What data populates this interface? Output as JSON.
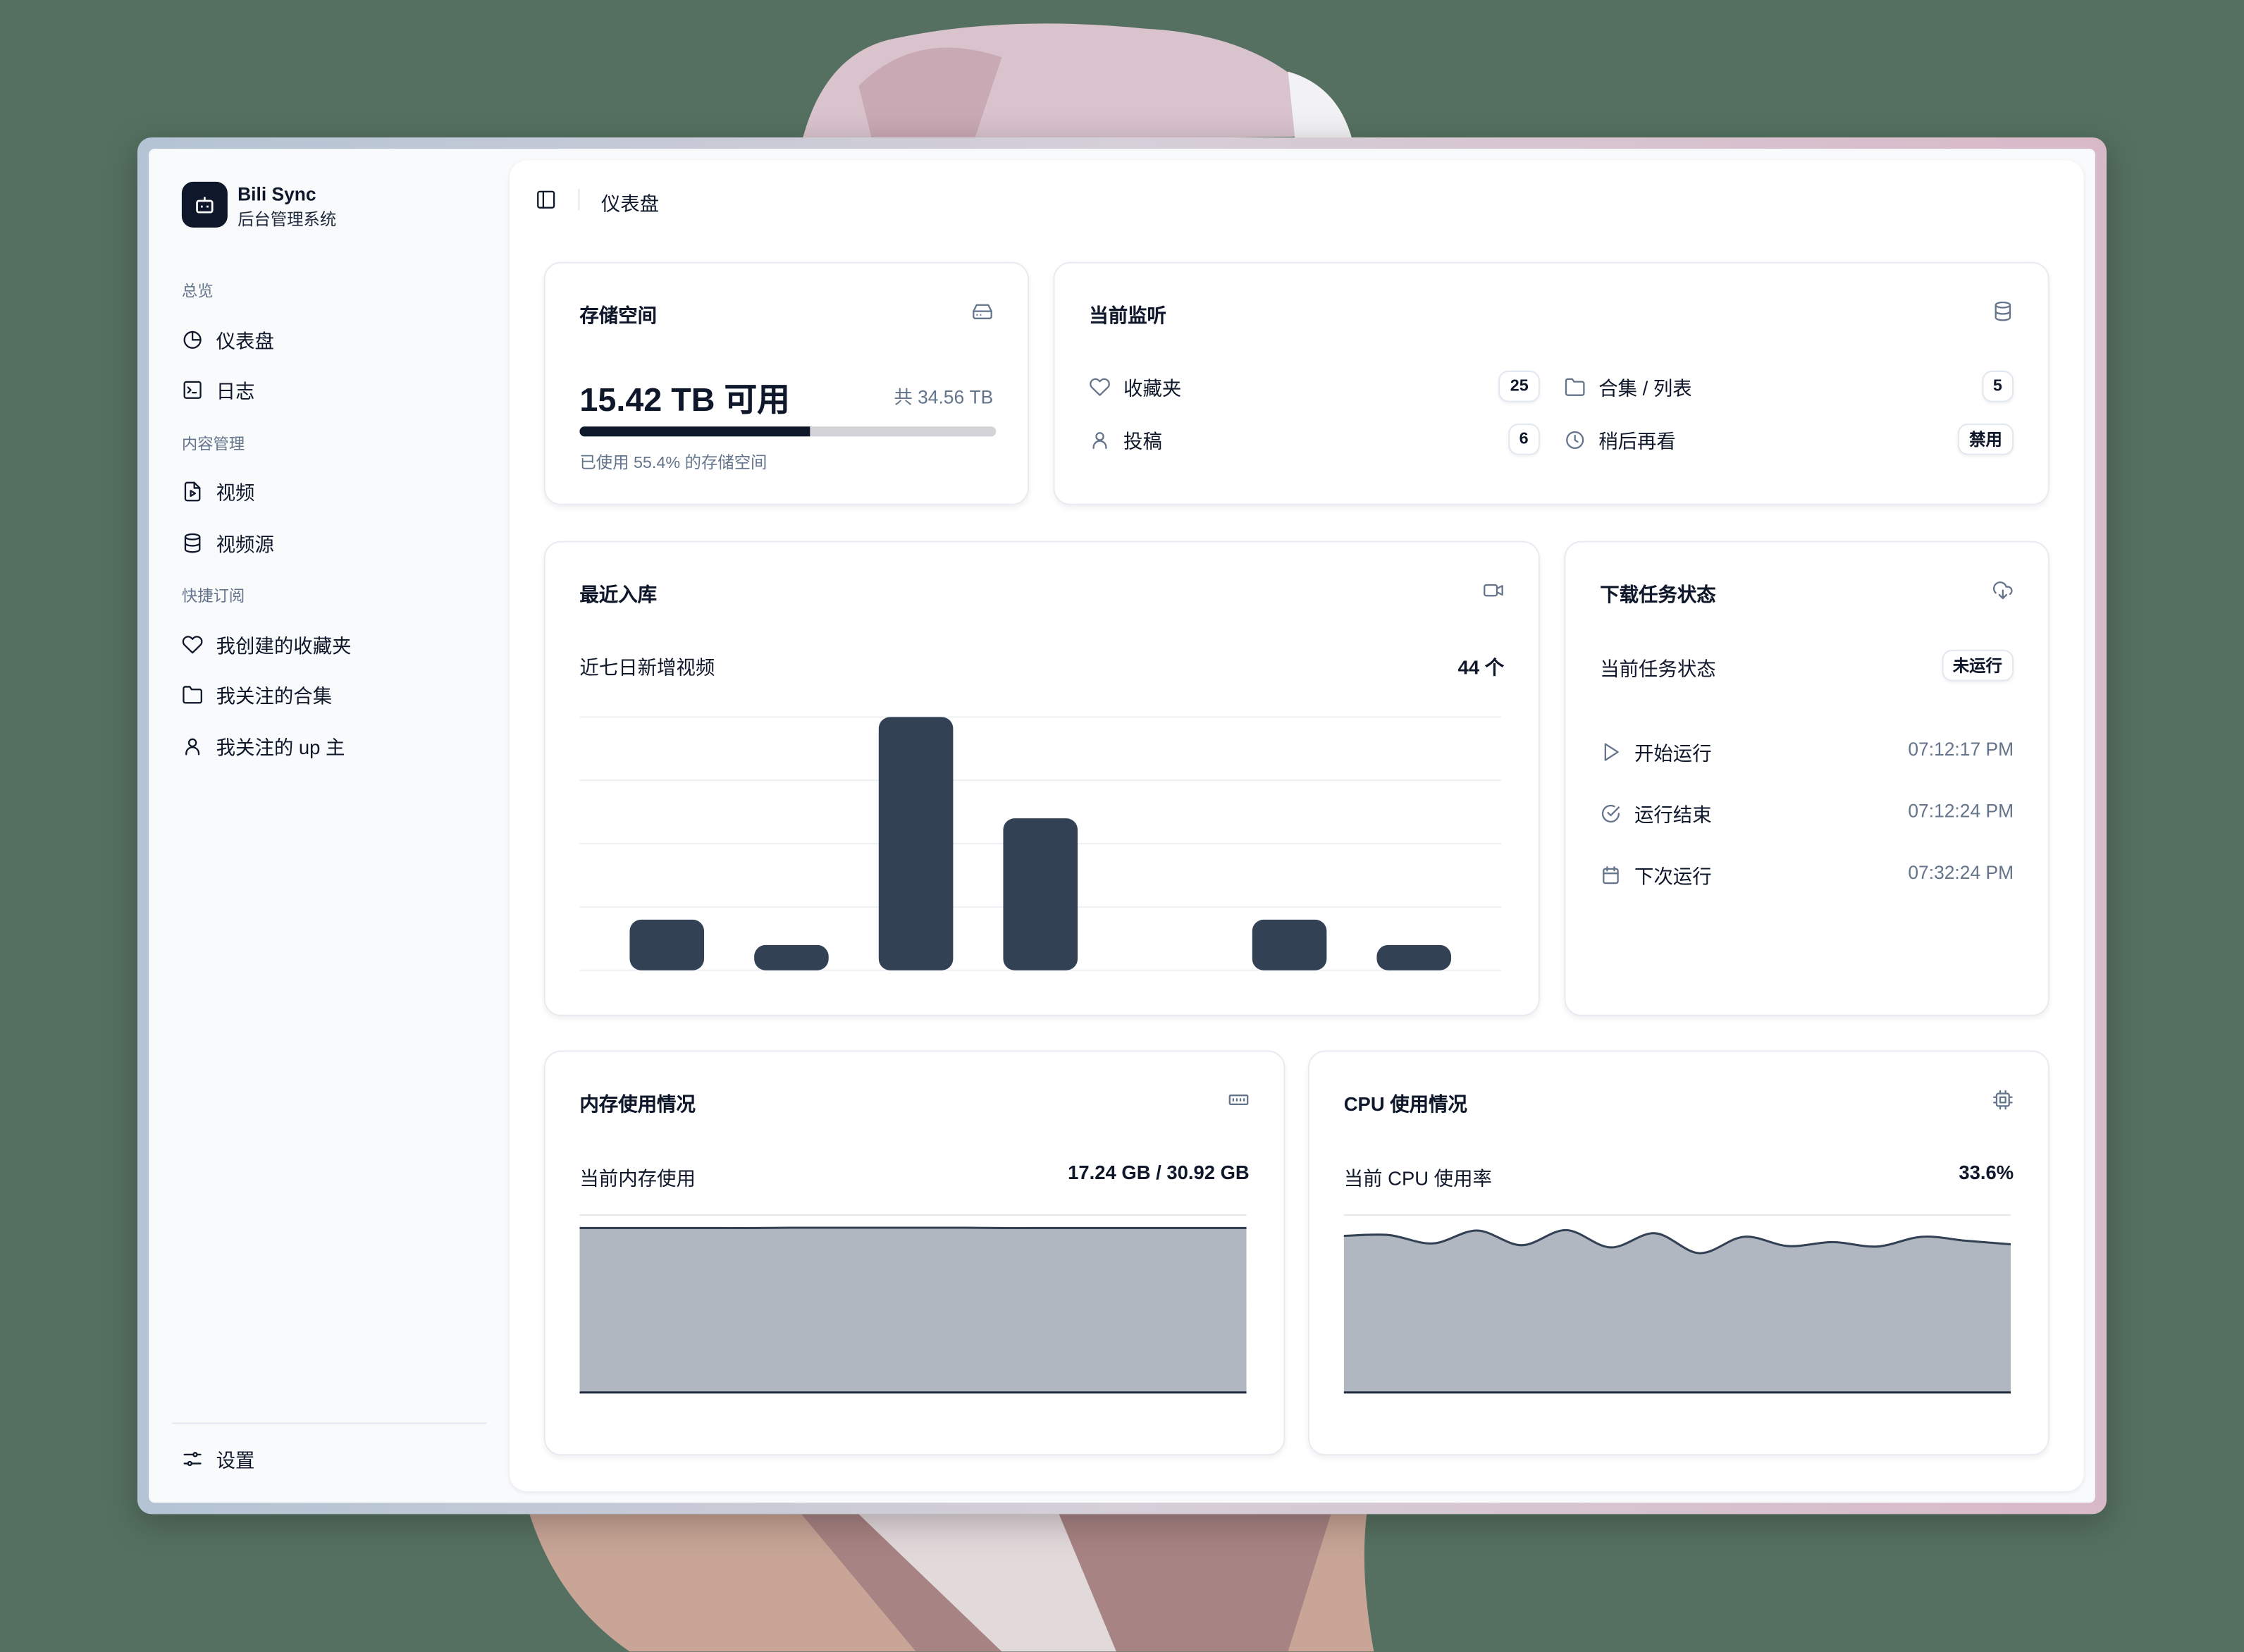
{
  "app": {
    "name": "Bili Sync",
    "subtitle": "后台管理系统"
  },
  "sidebar": {
    "sections": [
      {
        "label": "总览",
        "items": [
          {
            "label": "仪表盘",
            "icon": "pie-chart-icon"
          },
          {
            "label": "日志",
            "icon": "terminal-icon"
          }
        ]
      },
      {
        "label": "内容管理",
        "items": [
          {
            "label": "视频",
            "icon": "file-video-icon"
          },
          {
            "label": "视频源",
            "icon": "database-icon"
          }
        ]
      },
      {
        "label": "快捷订阅",
        "items": [
          {
            "label": "我创建的收藏夹",
            "icon": "heart-icon"
          },
          {
            "label": "我关注的合集",
            "icon": "folder-icon"
          },
          {
            "label": "我关注的 up 主",
            "icon": "user-icon"
          }
        ]
      }
    ],
    "settings": "设置"
  },
  "header": {
    "breadcrumb": "仪表盘"
  },
  "storage": {
    "title": "存储空间",
    "available": "15.42 TB 可用",
    "total": "共 34.56 TB",
    "used_percent": 55.4,
    "caption": "已使用 55.4% 的存储空间"
  },
  "monitor": {
    "title": "当前监听",
    "items": [
      {
        "label": "收藏夹",
        "value": "25",
        "icon": "heart-icon"
      },
      {
        "label": "合集 / 列表",
        "value": "5",
        "icon": "folder-icon"
      },
      {
        "label": "投稿",
        "value": "6",
        "icon": "user-icon"
      },
      {
        "label": "稍后再看",
        "value": "禁用",
        "icon": "clock-icon"
      }
    ]
  },
  "recent": {
    "title": "最近入库",
    "subtitle": "近七日新增视频",
    "total": "44 个"
  },
  "download": {
    "title": "下载任务状态",
    "status_label": "当前任务状态",
    "status": "未运行",
    "rows": [
      {
        "label": "开始运行",
        "time": "07:12:17 PM",
        "icon": "play-icon"
      },
      {
        "label": "运行结束",
        "time": "07:12:24 PM",
        "icon": "check-circle-icon"
      },
      {
        "label": "下次运行",
        "time": "07:32:24 PM",
        "icon": "calendar-icon"
      }
    ]
  },
  "memory": {
    "title": "内存使用情况",
    "label": "当前内存使用",
    "value": "17.24 GB / 30.92 GB"
  },
  "cpu": {
    "title": "CPU 使用情况",
    "label": "当前 CPU 使用率",
    "value": "33.6%"
  },
  "colors": {
    "bar": "#334155",
    "area_fill": "#adb3bd",
    "area_line": "#334155",
    "progress": "#0f172a",
    "background": "#557060"
  },
  "chart_data": [
    {
      "type": "bar",
      "values": [
        4,
        2,
        20,
        12,
        0,
        4,
        2
      ],
      "ylim": [
        0,
        20
      ],
      "grid": true
    },
    {
      "type": "area",
      "values": [
        55.6,
        55.6,
        55.6,
        55.6,
        55.6,
        55.6,
        55.7,
        55.7,
        55.7,
        55.7,
        55.7,
        55.7,
        55.6,
        55.6,
        55.6,
        55.6,
        55.6,
        55.6,
        55.6,
        55.6
      ],
      "ylim": [
        0,
        60
      ],
      "grid": true
    },
    {
      "type": "area",
      "values": [
        35.3,
        35.5,
        33.6,
        36.5,
        33.2,
        36.6,
        32.7,
        35.9,
        31.4,
        35.1,
        33.0,
        33.9,
        32.9,
        35.1,
        34.2,
        33.4
      ],
      "ylim": [
        0,
        40
      ],
      "grid": true
    }
  ]
}
